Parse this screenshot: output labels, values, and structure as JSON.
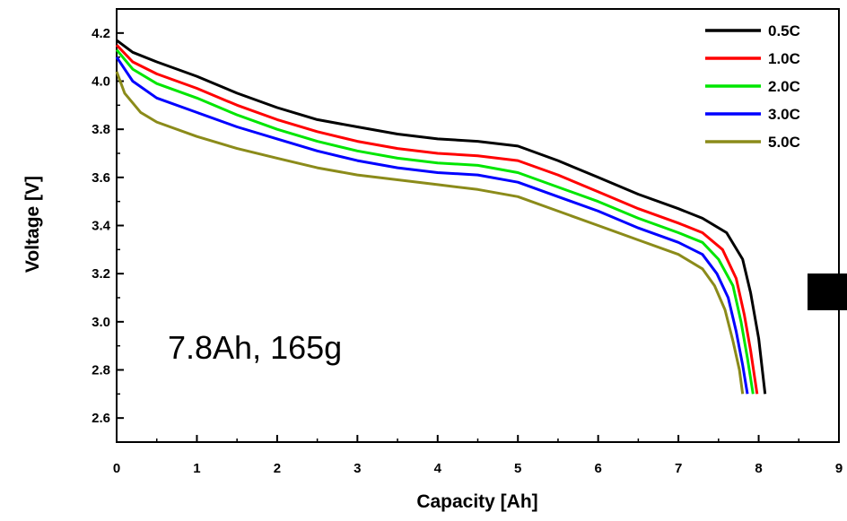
{
  "chart_data": {
    "type": "line",
    "title": "",
    "xlabel": "Capacity [Ah]",
    "ylabel": "Voltage [V]",
    "xlim": [
      0,
      9
    ],
    "ylim": [
      2.5,
      4.3
    ],
    "x_ticks": [
      "0",
      "1",
      "2",
      "3",
      "4",
      "5",
      "6",
      "7",
      "8",
      "9"
    ],
    "y_ticks": [
      "2.6",
      "2.8",
      "3.0",
      "3.2",
      "3.4",
      "3.6",
      "3.8",
      "4.0",
      "4.2"
    ],
    "grid": false,
    "legend_position": "top-right",
    "annotation": "7.8Ah, 165g",
    "series": [
      {
        "name": "0.5C",
        "color": "#000000",
        "points": [
          [
            0,
            4.17
          ],
          [
            0.2,
            4.12
          ],
          [
            0.5,
            4.08
          ],
          [
            1,
            4.02
          ],
          [
            1.5,
            3.95
          ],
          [
            2,
            3.89
          ],
          [
            2.5,
            3.84
          ],
          [
            3,
            3.81
          ],
          [
            3.5,
            3.78
          ],
          [
            4,
            3.76
          ],
          [
            4.5,
            3.75
          ],
          [
            5,
            3.73
          ],
          [
            5.5,
            3.67
          ],
          [
            6,
            3.6
          ],
          [
            6.5,
            3.53
          ],
          [
            7,
            3.47
          ],
          [
            7.3,
            3.43
          ],
          [
            7.6,
            3.37
          ],
          [
            7.8,
            3.26
          ],
          [
            7.9,
            3.12
          ],
          [
            8.0,
            2.93
          ],
          [
            8.08,
            2.7
          ]
        ]
      },
      {
        "name": "1.0C",
        "color": "#ff0000",
        "points": [
          [
            0,
            4.15
          ],
          [
            0.2,
            4.08
          ],
          [
            0.5,
            4.03
          ],
          [
            1,
            3.97
          ],
          [
            1.5,
            3.9
          ],
          [
            2,
            3.84
          ],
          [
            2.5,
            3.79
          ],
          [
            3,
            3.75
          ],
          [
            3.5,
            3.72
          ],
          [
            4,
            3.7
          ],
          [
            4.5,
            3.69
          ],
          [
            5,
            3.67
          ],
          [
            5.5,
            3.61
          ],
          [
            6,
            3.54
          ],
          [
            6.5,
            3.47
          ],
          [
            7,
            3.41
          ],
          [
            7.3,
            3.37
          ],
          [
            7.55,
            3.3
          ],
          [
            7.72,
            3.18
          ],
          [
            7.82,
            3.03
          ],
          [
            7.9,
            2.88
          ],
          [
            7.98,
            2.7
          ]
        ]
      },
      {
        "name": "2.0C",
        "color": "#00e600",
        "points": [
          [
            0,
            4.13
          ],
          [
            0.2,
            4.05
          ],
          [
            0.5,
            3.99
          ],
          [
            1,
            3.93
          ],
          [
            1.5,
            3.86
          ],
          [
            2,
            3.8
          ],
          [
            2.5,
            3.75
          ],
          [
            3,
            3.71
          ],
          [
            3.5,
            3.68
          ],
          [
            4,
            3.66
          ],
          [
            4.5,
            3.65
          ],
          [
            5,
            3.62
          ],
          [
            5.5,
            3.56
          ],
          [
            6,
            3.5
          ],
          [
            6.5,
            3.43
          ],
          [
            7,
            3.37
          ],
          [
            7.3,
            3.33
          ],
          [
            7.5,
            3.26
          ],
          [
            7.68,
            3.15
          ],
          [
            7.78,
            3.0
          ],
          [
            7.86,
            2.85
          ],
          [
            7.93,
            2.7
          ]
        ]
      },
      {
        "name": "3.0C",
        "color": "#0000ff",
        "points": [
          [
            0,
            4.1
          ],
          [
            0.2,
            4.0
          ],
          [
            0.5,
            3.93
          ],
          [
            1,
            3.87
          ],
          [
            1.5,
            3.81
          ],
          [
            2,
            3.76
          ],
          [
            2.5,
            3.71
          ],
          [
            3,
            3.67
          ],
          [
            3.5,
            3.64
          ],
          [
            4,
            3.62
          ],
          [
            4.5,
            3.61
          ],
          [
            5,
            3.58
          ],
          [
            5.5,
            3.52
          ],
          [
            6,
            3.46
          ],
          [
            6.5,
            3.39
          ],
          [
            7,
            3.33
          ],
          [
            7.3,
            3.28
          ],
          [
            7.48,
            3.2
          ],
          [
            7.62,
            3.1
          ],
          [
            7.72,
            2.96
          ],
          [
            7.8,
            2.82
          ],
          [
            7.86,
            2.7
          ]
        ]
      },
      {
        "name": "5.0C",
        "color": "#8b8b1a",
        "points": [
          [
            0,
            4.04
          ],
          [
            0.1,
            3.95
          ],
          [
            0.3,
            3.87
          ],
          [
            0.5,
            3.83
          ],
          [
            1,
            3.77
          ],
          [
            1.5,
            3.72
          ],
          [
            2,
            3.68
          ],
          [
            2.5,
            3.64
          ],
          [
            3,
            3.61
          ],
          [
            3.5,
            3.59
          ],
          [
            4,
            3.57
          ],
          [
            4.5,
            3.55
          ],
          [
            5,
            3.52
          ],
          [
            5.5,
            3.46
          ],
          [
            6,
            3.4
          ],
          [
            6.5,
            3.34
          ],
          [
            7,
            3.28
          ],
          [
            7.3,
            3.22
          ],
          [
            7.45,
            3.15
          ],
          [
            7.58,
            3.05
          ],
          [
            7.68,
            2.92
          ],
          [
            7.76,
            2.8
          ],
          [
            7.8,
            2.7
          ]
        ]
      }
    ]
  }
}
